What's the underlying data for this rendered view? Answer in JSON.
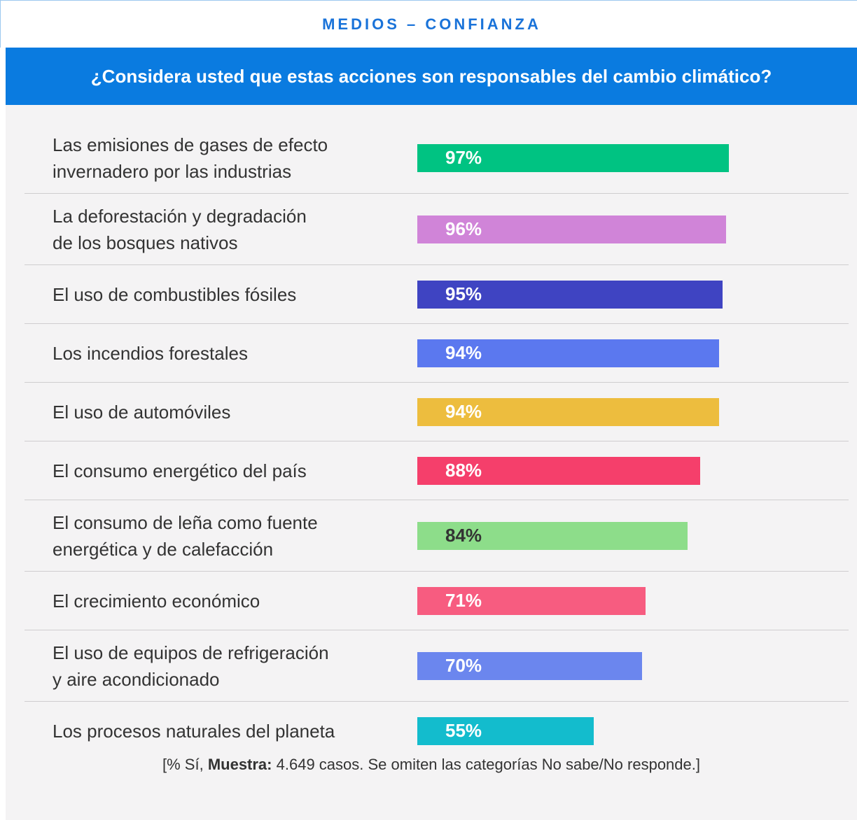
{
  "header": "MEDIOS – CONFIANZA",
  "chart_data": {
    "type": "bar",
    "title": "¿Considera usted que estas acciones son responsables del cambio climático?",
    "categories": [
      "Las emisiones de gases de efecto\ninvernadero por las industrias",
      "La deforestación y degradación\nde los bosques nativos",
      "El uso de combustibles fósiles",
      "Los incendios forestales",
      "El uso de automóviles",
      "El consumo energético del país",
      "El consumo de leña como fuente\nenergética y de calefacción",
      "El crecimiento económico",
      "El uso de equipos de refrigeración\ny aire acondicionado",
      "Los procesos naturales del planeta"
    ],
    "values": [
      97,
      96,
      95,
      94,
      94,
      88,
      84,
      71,
      70,
      55
    ],
    "value_labels": [
      "97%",
      "96%",
      "95%",
      "94%",
      "94%",
      "88%",
      "84%",
      "71%",
      "70%",
      "55%"
    ],
    "colors": [
      "#00c382",
      "#d084d8",
      "#3f44c2",
      "#5b78ef",
      "#edbd3e",
      "#f53f6b",
      "#8ddd8a",
      "#f75c80",
      "#6b86ee",
      "#13bccd"
    ],
    "value_label_colors": [
      "#ffffff",
      "#ffffff",
      "#ffffff",
      "#ffffff",
      "#ffffff",
      "#ffffff",
      "#333333",
      "#ffffff",
      "#ffffff",
      "#ffffff"
    ]
  },
  "note": {
    "prefix": "[% Sí,",
    "bold": "Muestra:",
    "rest": "4.649 casos. Se omiten las categorías No sabe/No responde.]"
  }
}
